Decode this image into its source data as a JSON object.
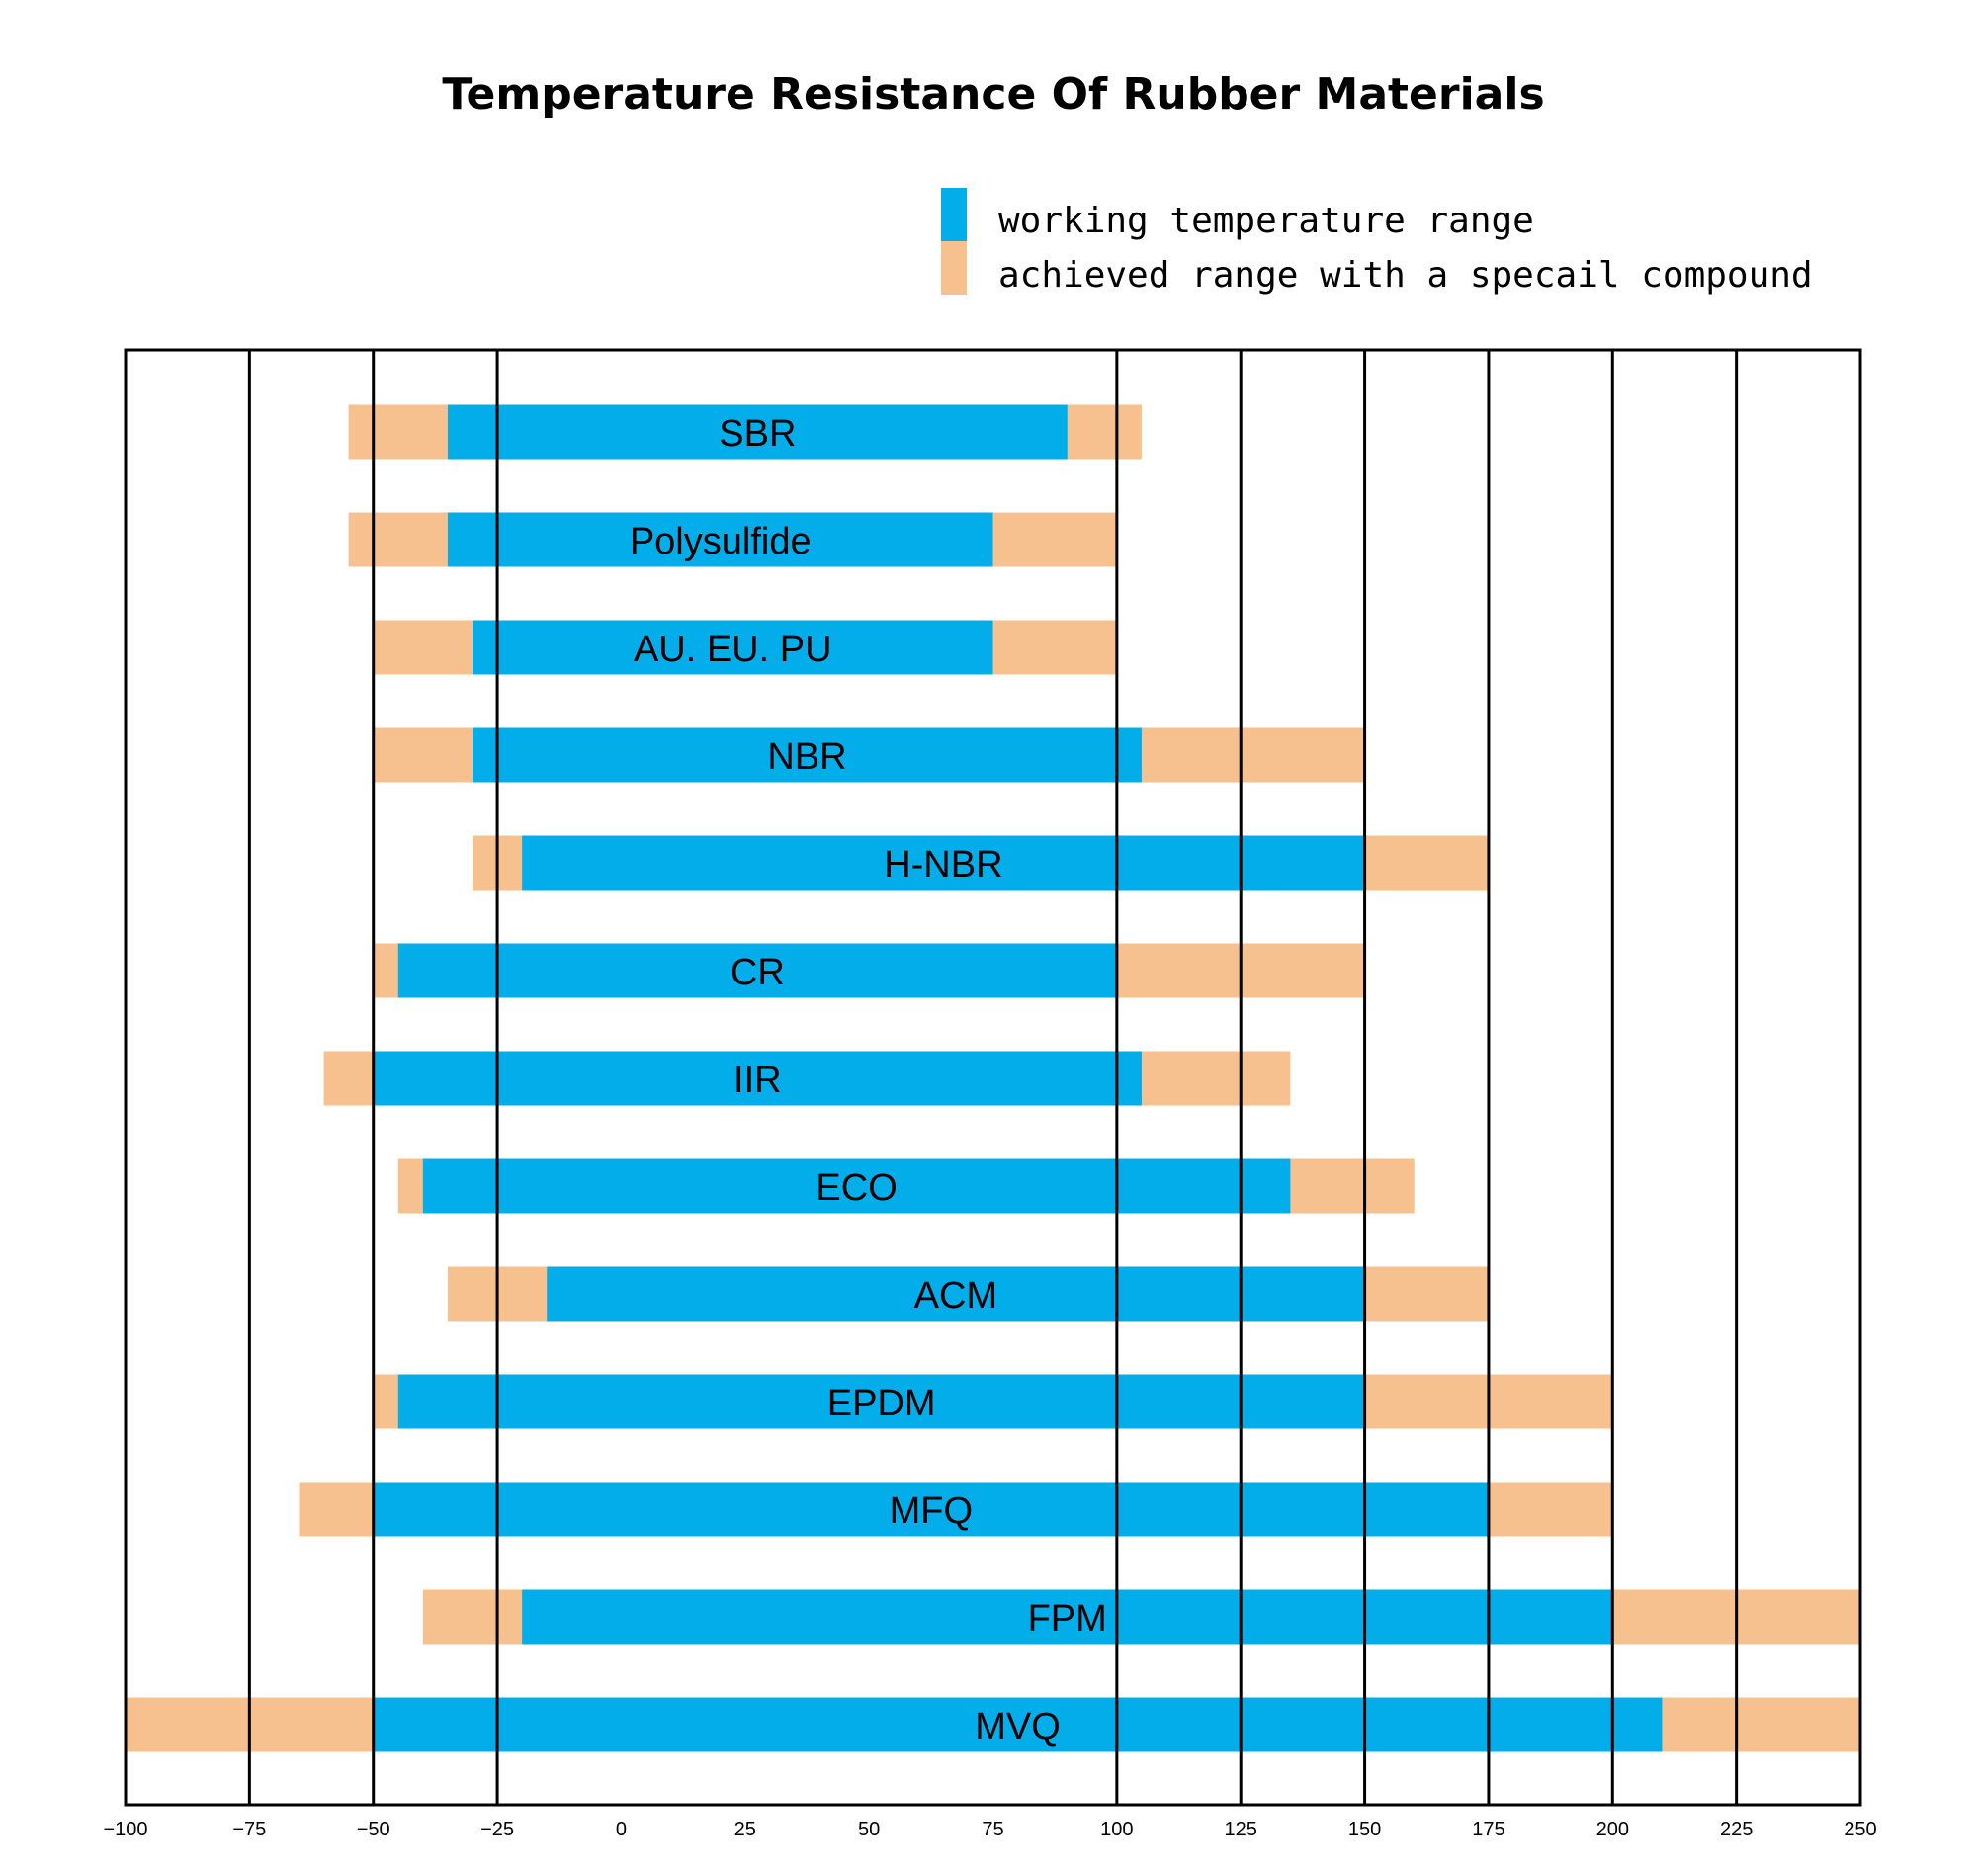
{
  "chart_data": {
    "type": "bar",
    "orientation": "horizontal-range",
    "title": "Temperature Resistance Of Rubber Materials",
    "legend": {
      "position": "top-right",
      "items": [
        {
          "label": "working temperature range",
          "color": "#03adea"
        },
        {
          "label": "achieved range with a specail compound",
          "color": "#f6c08f"
        }
      ]
    },
    "x_axis": {
      "range": [
        -100,
        250
      ],
      "ticks": [
        -100,
        -75,
        -50,
        -25,
        0,
        25,
        50,
        75,
        100,
        125,
        150,
        175,
        200,
        225,
        250
      ],
      "tick_labels": [
        "−100",
        "−75",
        "−50",
        "−25",
        "0",
        "25",
        "50",
        "75",
        "100",
        "125",
        "150",
        "175",
        "200",
        "225",
        "250"
      ],
      "gridlines_at": [
        -75,
        -50,
        -25,
        100,
        125,
        150,
        175,
        200,
        225
      ]
    },
    "series": [
      {
        "name": "SBR",
        "special": [
          -55,
          105
        ],
        "working": [
          -35,
          90
        ]
      },
      {
        "name": "Polysulfide",
        "special": [
          -55,
          100
        ],
        "working": [
          -35,
          75
        ]
      },
      {
        "name": "AU. EU. PU",
        "special": [
          -50,
          100
        ],
        "working": [
          -30,
          75
        ]
      },
      {
        "name": "NBR",
        "special": [
          -50,
          150
        ],
        "working": [
          -30,
          105
        ]
      },
      {
        "name": "H-NBR",
        "special": [
          -30,
          175
        ],
        "working": [
          -20,
          150
        ]
      },
      {
        "name": "CR",
        "special": [
          -50,
          150
        ],
        "working": [
          -45,
          100
        ]
      },
      {
        "name": "IIR",
        "special": [
          -60,
          135
        ],
        "working": [
          -50,
          105
        ]
      },
      {
        "name": "ECO",
        "special": [
          -45,
          160
        ],
        "working": [
          -40,
          135
        ]
      },
      {
        "name": "ACM",
        "special": [
          -35,
          175
        ],
        "working": [
          -15,
          150
        ]
      },
      {
        "name": "EPDM",
        "special": [
          -50,
          200
        ],
        "working": [
          -45,
          150
        ]
      },
      {
        "name": "MFQ",
        "special": [
          -65,
          200
        ],
        "working": [
          -50,
          175
        ]
      },
      {
        "name": "FPM",
        "special": [
          -40,
          250
        ],
        "working": [
          -20,
          200
        ]
      },
      {
        "name": "MVQ",
        "special": [
          -100,
          250
        ],
        "working": [
          -50,
          210
        ]
      }
    ]
  }
}
